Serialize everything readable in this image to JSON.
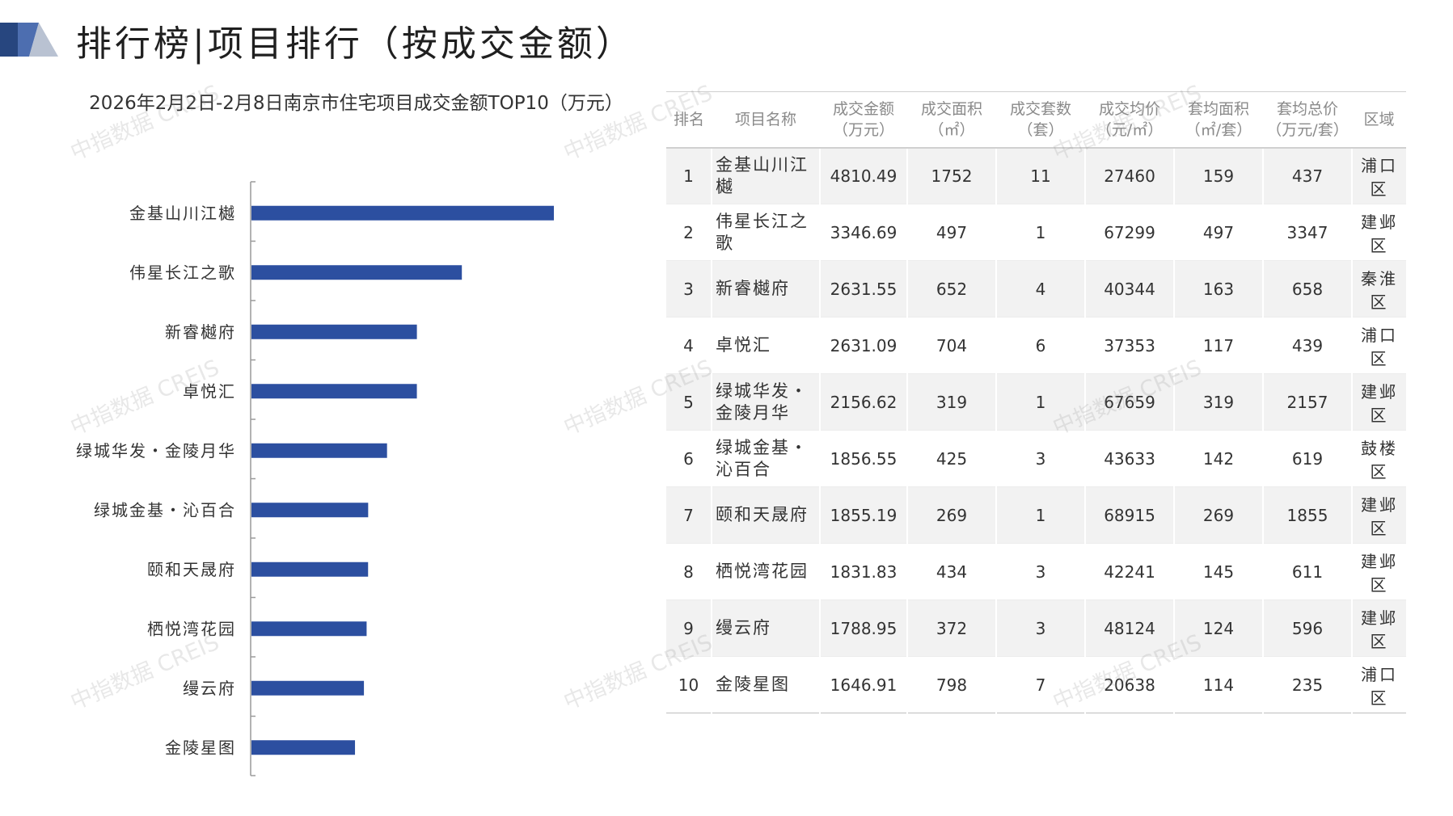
{
  "page_title": "排行榜|项目排行（按成交金额）",
  "colors": {
    "bar": "#2c4fa0",
    "logo_dark": "#27467f",
    "logo_mid": "#4d6eb0",
    "logo_light": "#b9c2d2"
  },
  "chart_data": {
    "type": "bar",
    "orientation": "horizontal",
    "title": "2026年2月2日-2月8日南京市住宅项目成交金额TOP10（万元）",
    "categories": [
      "金基山川江樾",
      "伟星长江之歌",
      "新睿樾府",
      "卓悦汇",
      "绿城华发・金陵月华",
      "绿城金基・沁百合",
      "颐和天晟府",
      "栖悦湾花园",
      "缦云府",
      "金陵星图"
    ],
    "values": [
      4810.49,
      3346.69,
      2631.55,
      2631.09,
      2156.62,
      1856.55,
      1855.19,
      1831.83,
      1788.95,
      1646.91
    ],
    "xlim": [
      0,
      6000
    ],
    "grid": false,
    "legend": "none"
  },
  "table": {
    "headers": [
      [
        "排名",
        ""
      ],
      [
        "项目名称",
        ""
      ],
      [
        "成交金额",
        "（万元）"
      ],
      [
        "成交面积",
        "（㎡）"
      ],
      [
        "成交套数",
        "（套）"
      ],
      [
        "成交均价",
        "（元/㎡）"
      ],
      [
        "套均面积",
        "（㎡/套）"
      ],
      [
        "套均总价",
        "（万元/套）"
      ],
      [
        "区域",
        ""
      ]
    ],
    "rows": [
      [
        "1",
        "金基山川江樾",
        "4810.49",
        "1752",
        "11",
        "27460",
        "159",
        "437",
        "浦口区"
      ],
      [
        "2",
        "伟星长江之歌",
        "3346.69",
        "497",
        "1",
        "67299",
        "497",
        "3347",
        "建邺区"
      ],
      [
        "3",
        "新睿樾府",
        "2631.55",
        "652",
        "4",
        "40344",
        "163",
        "658",
        "秦淮区"
      ],
      [
        "4",
        "卓悦汇",
        "2631.09",
        "704",
        "6",
        "37353",
        "117",
        "439",
        "浦口区"
      ],
      [
        "5",
        "绿城华发・金陵月华",
        "2156.62",
        "319",
        "1",
        "67659",
        "319",
        "2157",
        "建邺区"
      ],
      [
        "6",
        "绿城金基・沁百合",
        "1856.55",
        "425",
        "3",
        "43633",
        "142",
        "619",
        "鼓楼区"
      ],
      [
        "7",
        "颐和天晟府",
        "1855.19",
        "269",
        "1",
        "68915",
        "269",
        "1855",
        "建邺区"
      ],
      [
        "8",
        "栖悦湾花园",
        "1831.83",
        "434",
        "3",
        "42241",
        "145",
        "611",
        "建邺区"
      ],
      [
        "9",
        "缦云府",
        "1788.95",
        "372",
        "3",
        "48124",
        "124",
        "596",
        "建邺区"
      ],
      [
        "10",
        "金陵星图",
        "1646.91",
        "798",
        "7",
        "20638",
        "114",
        "235",
        "浦口区"
      ]
    ]
  },
  "watermark": "中指数据 CREIS"
}
